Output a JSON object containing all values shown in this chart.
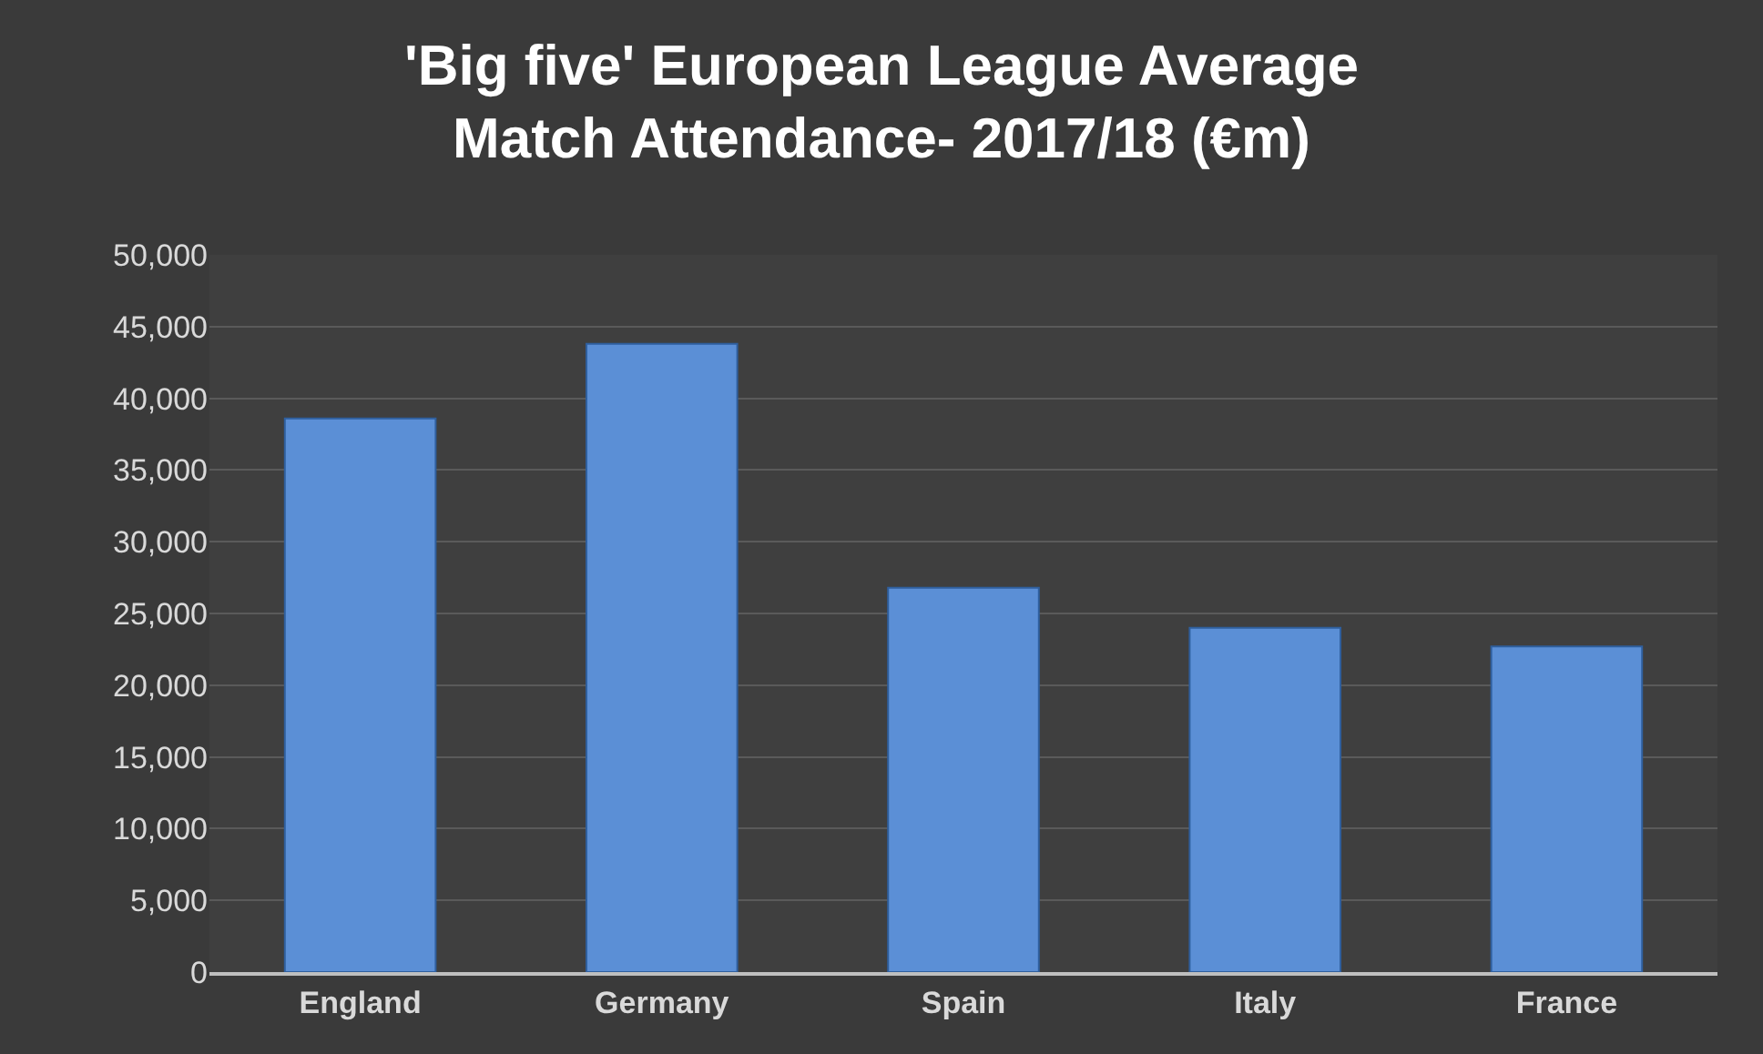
{
  "chart_data": {
    "type": "bar",
    "title": "'Big five' European League Average Match Attendance- 2017/18 (€m)",
    "categories": [
      "England",
      "Germany",
      "Spain",
      "Italy",
      "France"
    ],
    "values": [
      38600,
      43800,
      26800,
      24000,
      22700
    ],
    "color": "#5b8fd6",
    "ylim": [
      0,
      50000
    ],
    "yticks": [
      {
        "value": 0,
        "label": "0"
      },
      {
        "value": 5000,
        "label": "5,000"
      },
      {
        "value": 10000,
        "label": "10,000"
      },
      {
        "value": 15000,
        "label": "15,000"
      },
      {
        "value": 20000,
        "label": "20,000"
      },
      {
        "value": 25000,
        "label": "25,000"
      },
      {
        "value": 30000,
        "label": "30,000"
      },
      {
        "value": 35000,
        "label": "35,000"
      },
      {
        "value": 40000,
        "label": "40,000"
      },
      {
        "value": 45000,
        "label": "45,000"
      },
      {
        "value": 50000,
        "label": "50,000"
      }
    ],
    "grid": "y"
  }
}
